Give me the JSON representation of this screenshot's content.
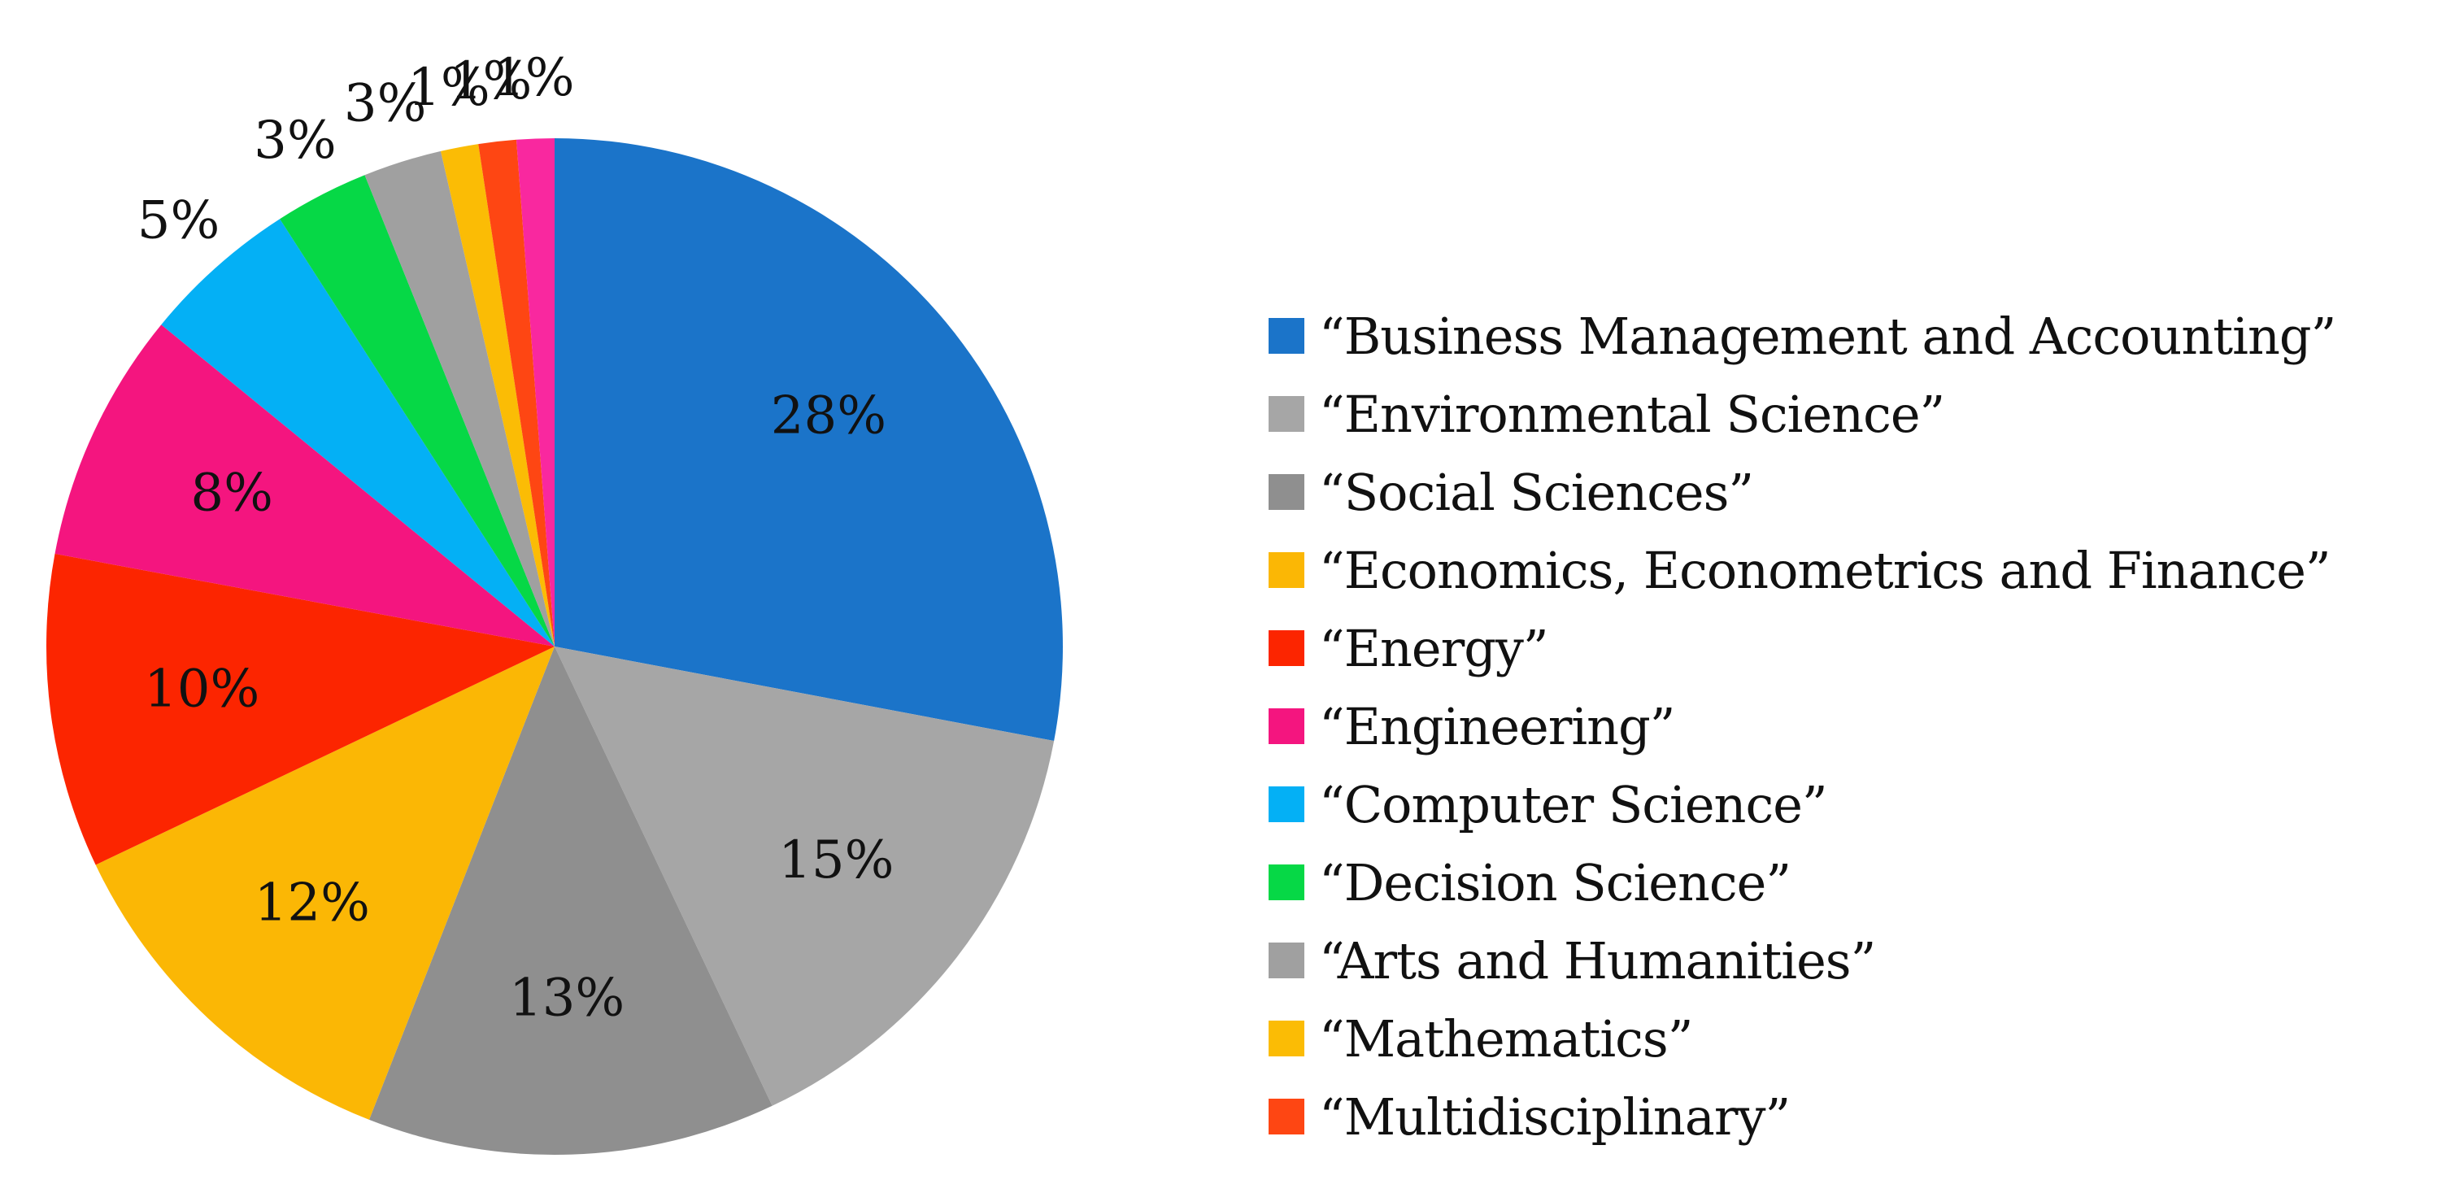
{
  "chart_data": {
    "type": "pie",
    "start_angle_deg": 0,
    "direction": "clockwise",
    "slices": [
      {
        "label": "“Business Management and Accounting”",
        "value": 28,
        "display": "28%",
        "color": "#1b74c9"
      },
      {
        "label": "“Environmental Science”",
        "value": 15,
        "display": "15%",
        "color": "#a6a6a6"
      },
      {
        "label": "“Social Sciences”",
        "value": 13,
        "display": "13%",
        "color": "#8f8f8f"
      },
      {
        "label": "“Economics, Econometrics and Finance”",
        "value": 12,
        "display": "12%",
        "color": "#fbb705"
      },
      {
        "label": "“Energy”",
        "value": 10,
        "display": "10%",
        "color": "#fc2500"
      },
      {
        "label": "“Engineering”",
        "value": 8,
        "display": "8%",
        "color": "#f4157f"
      },
      {
        "label": "“Computer Science”",
        "value": 5,
        "display": "5%",
        "color": "#04b0f5"
      },
      {
        "label": "“Decision Science”",
        "value": 3,
        "display": "3%",
        "color": "#06d846"
      },
      {
        "label": "“Arts and Humanities”",
        "value": 2.5,
        "display": "3%",
        "color": "#a0a0a0"
      },
      {
        "label": "“Mathematics”",
        "value": 1.2,
        "display": "1%",
        "color": "#fbbc05"
      },
      {
        "label": "“Multidisciplinary”",
        "value": 1.2,
        "display": "1%",
        "color": "#fe4613"
      },
      {
        "label": "",
        "value": 1.2,
        "display": "1%",
        "color": "#f9289f"
      }
    ],
    "legend_position": "right"
  }
}
